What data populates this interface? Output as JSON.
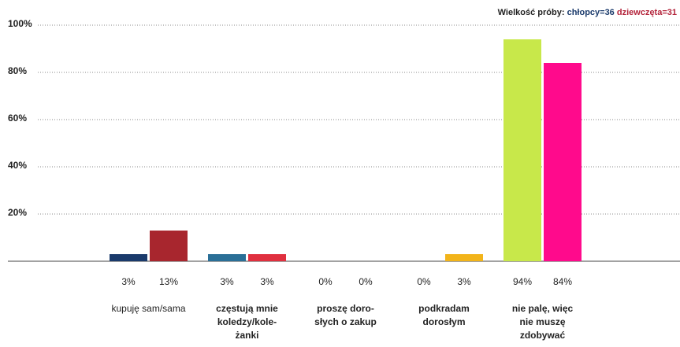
{
  "header": {
    "prefix": "Wielkość próby:",
    "boys": "chłopcy=36",
    "girls": "dziewczęta=31"
  },
  "colors": {
    "grid": "#888888",
    "axis": "#444444"
  },
  "chart_data": {
    "type": "bar",
    "ylim": [
      0,
      100
    ],
    "yticks": [
      "20%",
      "40%",
      "60%",
      "80%",
      "100%"
    ],
    "ytick_values": [
      20,
      40,
      60,
      80,
      100
    ],
    "grid": true,
    "categories": [
      {
        "label": "kupuję sam/sama",
        "bold": false
      },
      {
        "label": "częstują mnie koledzy/kole-żanki",
        "lines": [
          "częstują mnie",
          "koledzy/kole-",
          "żanki"
        ],
        "bold": true
      },
      {
        "label": "proszę doro-słych o zakup",
        "lines": [
          "proszę doro-",
          "słych o zakup"
        ],
        "bold": true
      },
      {
        "label": "podkradam dorosłym",
        "lines": [
          "podkradam",
          "dorosłym"
        ],
        "bold": true
      },
      {
        "label": "nie palę, więc nie muszę zdobywać",
        "lines": [
          "nie palę, więc",
          "nie muszę",
          "zdobywać"
        ],
        "bold": true
      }
    ],
    "series": [
      {
        "name": "chłopcy",
        "values": [
          3,
          3,
          0,
          0,
          94
        ],
        "labels": [
          "3%",
          "3%",
          "0%",
          "0%",
          "94%"
        ],
        "colors": [
          "#1a3a6b",
          "#2a6f97",
          "#cccccc",
          "#cccccc",
          "#c8e84a"
        ]
      },
      {
        "name": "dziewczęta",
        "values": [
          13,
          3,
          0,
          3,
          84
        ],
        "labels": [
          "13%",
          "3%",
          "0%",
          "3%",
          "84%"
        ],
        "colors": [
          "#a8262e",
          "#e0303f",
          "#cccccc",
          "#f2b41a",
          "#ff0a8c"
        ]
      }
    ]
  }
}
